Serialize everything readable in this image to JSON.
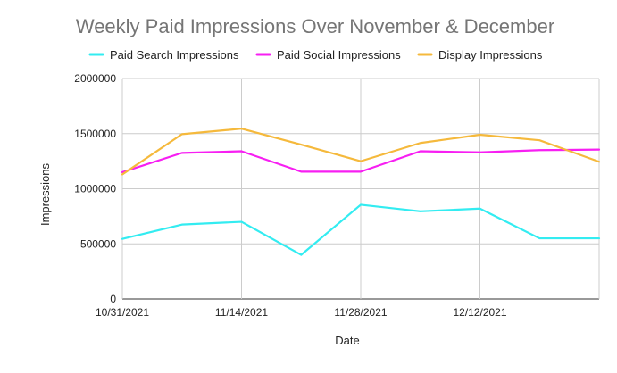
{
  "chart_data": {
    "type": "line",
    "title": "Weekly Paid Impressions Over November & December",
    "xlabel": "Date",
    "ylabel": "Impressions",
    "x": [
      "2021-10-31",
      "2021-11-07",
      "2021-11-14",
      "2021-11-21",
      "2021-11-28",
      "2021-12-05",
      "2021-12-12",
      "2021-12-19",
      "2021-12-26"
    ],
    "x_tick_labels": [
      {
        "label": "10/31/2021",
        "date": "2021-10-31"
      },
      {
        "label": "11/14/2021",
        "date": "2021-11-14"
      },
      {
        "label": "11/28/2021",
        "date": "2021-11-28"
      },
      {
        "label": "12/12/2021",
        "date": "2021-12-12"
      }
    ],
    "ylim": [
      0,
      2000000
    ],
    "y_ticks": [
      {
        "value": 0,
        "label": "0"
      },
      {
        "value": 500000,
        "label": "500000"
      },
      {
        "value": 1000000,
        "label": "1000000"
      },
      {
        "value": 1500000,
        "label": "1500000"
      },
      {
        "value": 2000000,
        "label": "2000000"
      }
    ],
    "grid": true,
    "legend_position": "top",
    "series": [
      {
        "name": "Paid Search Impressions",
        "color": "#33ecf1",
        "values": [
          545000,
          675000,
          700000,
          400000,
          855000,
          795000,
          820000,
          550000,
          550000
        ]
      },
      {
        "name": "Paid Social Impressions",
        "color": "#f71ff2",
        "values": [
          1150000,
          1325000,
          1340000,
          1155000,
          1155000,
          1340000,
          1330000,
          1350000,
          1355000
        ]
      },
      {
        "name": "Display Impressions",
        "color": "#f5b93c",
        "values": [
          1130000,
          1495000,
          1545000,
          1400000,
          1250000,
          1415000,
          1490000,
          1440000,
          1245000
        ]
      }
    ]
  }
}
